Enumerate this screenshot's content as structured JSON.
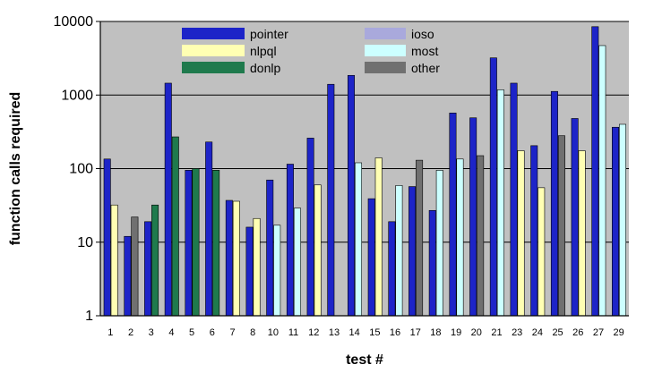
{
  "chart_data": {
    "type": "bar",
    "xlabel": "test #",
    "ylabel": "function calls required",
    "yscale": "log",
    "ylim": [
      1,
      10000
    ],
    "yticks": [
      "1",
      "10",
      "100",
      "1000",
      "10000"
    ],
    "grid": "horizontal",
    "legend_position": "top-left",
    "categories": [
      "1",
      "2",
      "3",
      "4",
      "5",
      "6",
      "7",
      "8",
      "10",
      "11",
      "12",
      "13",
      "14",
      "15",
      "16",
      "17",
      "18",
      "19",
      "20",
      "21",
      "23",
      "24",
      "25",
      "26",
      "27",
      "29"
    ],
    "series": [
      {
        "name": "pointer",
        "color": "#1d24c8",
        "values": [
          135,
          12,
          19,
          1450,
          95,
          230,
          37,
          16,
          70,
          115,
          260,
          1400,
          1850,
          39,
          19,
          57,
          27,
          570,
          490,
          3200,
          1450,
          205,
          1120,
          480,
          8500,
          365
        ]
      },
      {
        "name": "ioso",
        "color": "#a9a9dc",
        "values": [
          null,
          null,
          null,
          null,
          null,
          null,
          null,
          null,
          null,
          null,
          null,
          null,
          null,
          null,
          null,
          null,
          null,
          null,
          null,
          null,
          null,
          null,
          null,
          null,
          null,
          null
        ]
      },
      {
        "name": "nlpql",
        "color": "#ffffb3",
        "values": [
          32,
          null,
          null,
          null,
          null,
          null,
          36,
          21,
          null,
          null,
          60,
          null,
          null,
          140,
          null,
          null,
          null,
          null,
          null,
          null,
          175,
          55,
          null,
          175,
          null,
          null
        ]
      },
      {
        "name": "most",
        "color": "#ccffff",
        "values": [
          null,
          null,
          null,
          null,
          null,
          null,
          null,
          null,
          17,
          29,
          null,
          null,
          120,
          null,
          59,
          null,
          95,
          135,
          null,
          1180,
          null,
          null,
          null,
          null,
          4700,
          400
        ]
      },
      {
        "name": "donlp",
        "color": "#1f7a4d",
        "values": [
          null,
          null,
          32,
          270,
          100,
          95,
          null,
          null,
          null,
          null,
          null,
          null,
          null,
          null,
          null,
          null,
          null,
          null,
          null,
          null,
          null,
          null,
          null,
          null,
          null,
          null
        ]
      },
      {
        "name": "other",
        "color": "#707070",
        "values": [
          null,
          22,
          null,
          null,
          null,
          null,
          null,
          null,
          null,
          null,
          null,
          null,
          null,
          null,
          null,
          130,
          null,
          null,
          150,
          null,
          null,
          null,
          280,
          null,
          null,
          null
        ]
      }
    ]
  },
  "colors": {
    "plot_background": "#c0c0c0",
    "gridline": "#000000"
  }
}
